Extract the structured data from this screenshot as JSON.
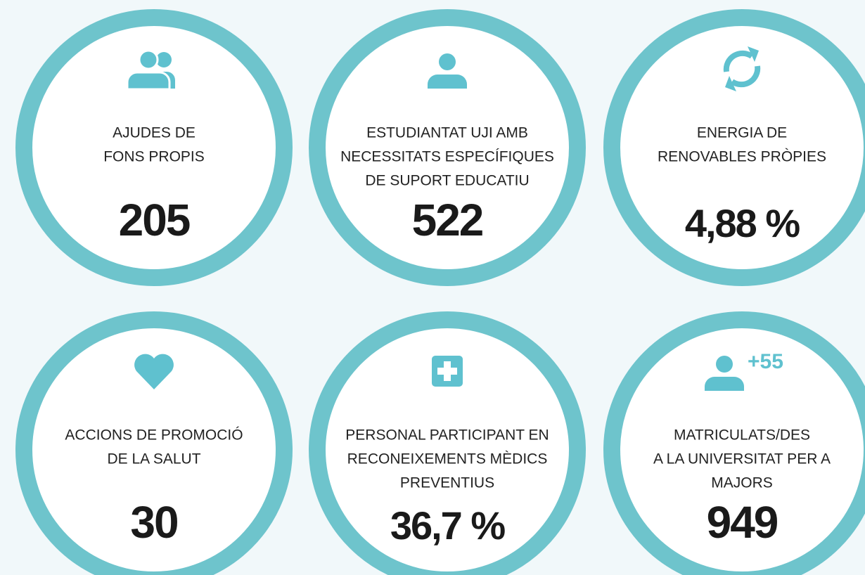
{
  "items": [
    {
      "label": [
        "AJUDES DE",
        "FONS PROPIS"
      ],
      "value": "205"
    },
    {
      "label": [
        "ESTUDIANTAT UJI AMB",
        "NECESSITATS ESPECÍFIQUES",
        "DE SUPORT EDUCATIU"
      ],
      "value": "522"
    },
    {
      "label": [
        "ENERGIA DE",
        "RENOVABLES PRÒPIES"
      ],
      "value": "4,88 %"
    },
    {
      "label": [
        "ACCIONS DE PROMOCIÓ",
        "DE LA SALUT"
      ],
      "value": "30"
    },
    {
      "label": [
        "PERSONAL PARTICIPANT EN",
        "RECONEIXEMENTS MÈDICS",
        "PREVENTIUS"
      ],
      "value": "36,7 %"
    },
    {
      "label": [
        "MATRICULATS/DES",
        "A LA UNIVERSITAT PER A",
        "MAJORS"
      ],
      "value": "949",
      "icon_text": "+55"
    }
  ]
}
